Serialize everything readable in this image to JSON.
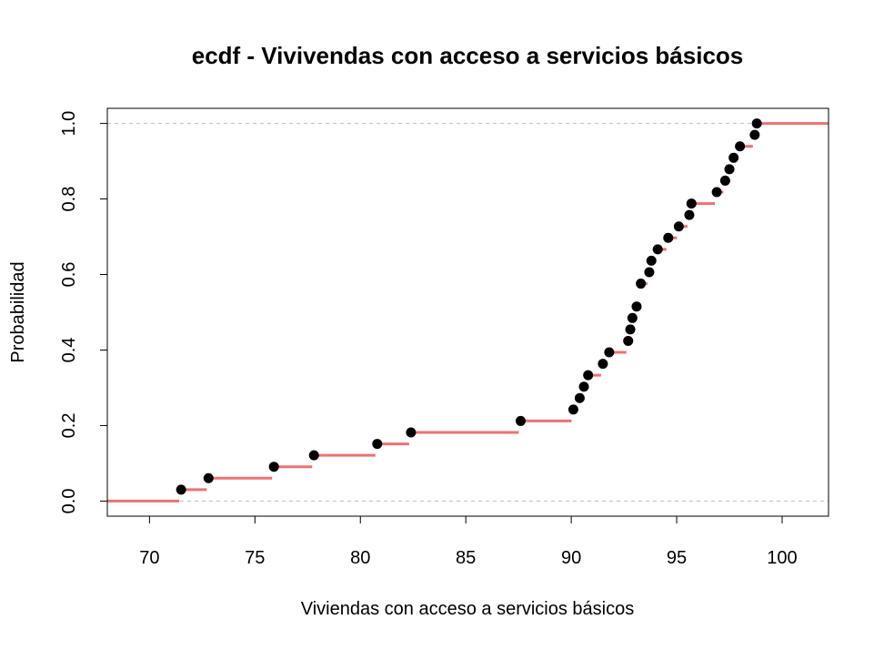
{
  "chart_data": {
    "type": "scatter",
    "subtype": "ecdf-step",
    "title": "ecdf - Vivivendas con acceso a servicios básicos",
    "xlabel": "Viviendas con acceso a servicios básicos",
    "ylabel": "Probabilidad",
    "xlim": [
      68,
      102.2
    ],
    "ylim": [
      -0.04,
      1.04
    ],
    "x_ticks": [
      70,
      75,
      80,
      85,
      90,
      95,
      100
    ],
    "x_tick_labels": [
      "70",
      "75",
      "80",
      "85",
      "90",
      "95",
      "100"
    ],
    "y_ticks": [
      0.0,
      0.2,
      0.4,
      0.6,
      0.8,
      1.0
    ],
    "y_tick_labels": [
      "0.0",
      "0.2",
      "0.4",
      "0.6",
      "0.8",
      "1.0"
    ],
    "reference_lines": [
      0,
      1
    ],
    "grid": false,
    "colors": {
      "step": "#f07070",
      "point": "#000000",
      "reference": "#bebebe"
    },
    "x": [
      71.5,
      72.8,
      75.9,
      77.8,
      80.8,
      82.4,
      87.6,
      90.1,
      90.4,
      90.6,
      90.8,
      91.5,
      91.8,
      92.7,
      92.8,
      92.9,
      93.1,
      93.3,
      93.7,
      93.8,
      94.1,
      94.6,
      95.1,
      95.6,
      95.7,
      96.9,
      97.3,
      97.5,
      97.7,
      98.0,
      98.7,
      98.8
    ],
    "y": [
      0.0303,
      0.0606,
      0.0909,
      0.1212,
      0.1515,
      0.1818,
      0.2121,
      0.2424,
      0.2727,
      0.303,
      0.3333,
      0.3636,
      0.3939,
      0.4242,
      0.4545,
      0.4848,
      0.5152,
      0.5758,
      0.6061,
      0.6364,
      0.6667,
      0.697,
      0.7273,
      0.7576,
      0.7879,
      0.8182,
      0.8485,
      0.8788,
      0.9091,
      0.9394,
      0.9697,
      1.0
    ]
  }
}
